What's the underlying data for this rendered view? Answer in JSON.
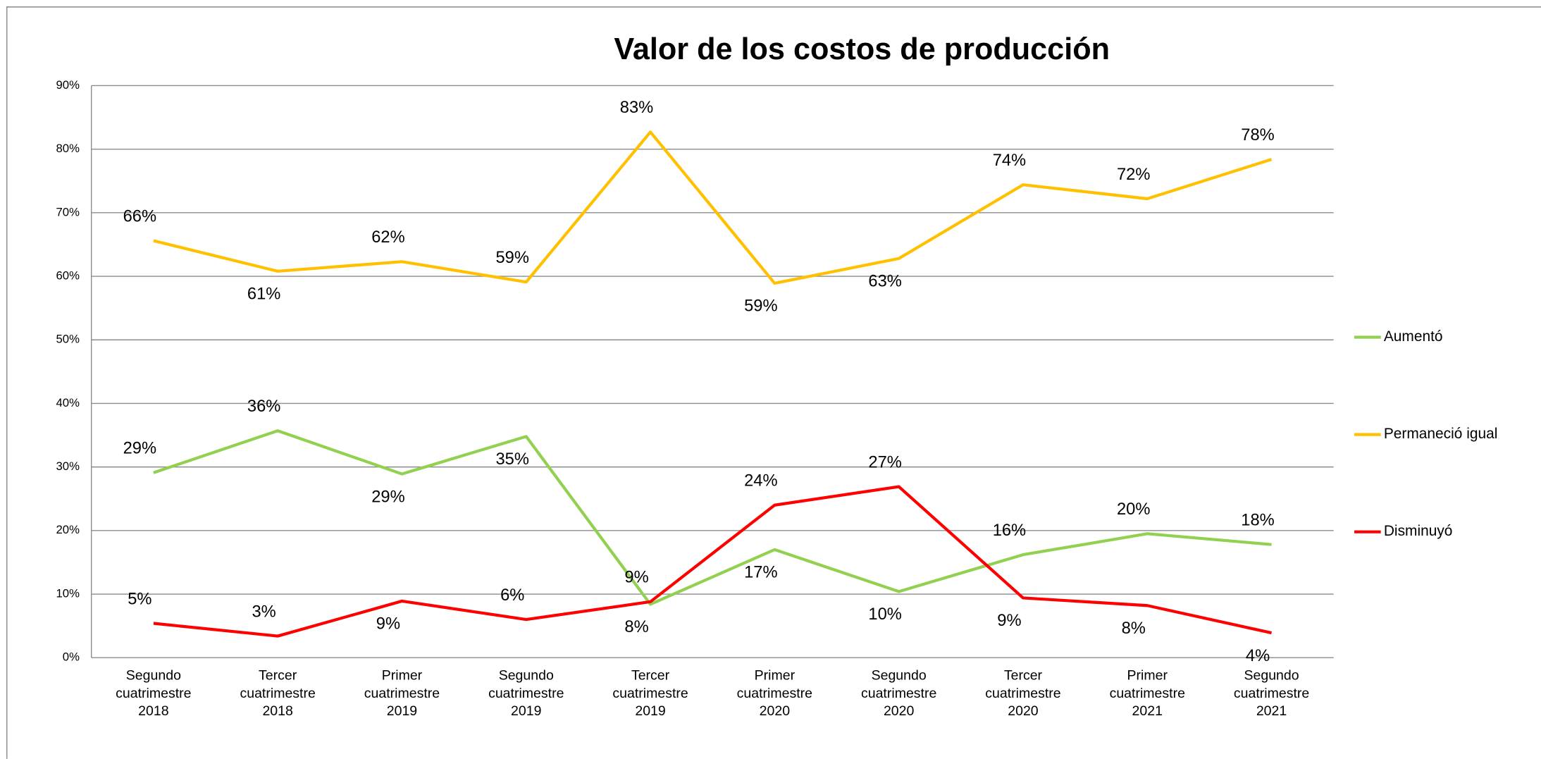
{
  "chart_data": {
    "type": "line",
    "title": "Valor de los costos de producción",
    "categories": [
      "Segundo cuatrimestre 2018",
      "Tercer cuatrimestre 2018",
      "Primer cuatrimestre 2019",
      "Segundo cuatrimestre 2019",
      "Tercer cuatrimestre 2019",
      "Primer cuatrimestre 2020",
      "Segundo cuatrimestre 2020",
      "Tercer cuatrimestre 2020",
      "Primer cuatrimestre 2021",
      "Segundo cuatrimestre 2021"
    ],
    "series": [
      {
        "name": "Aumentó",
        "color": "#92d050",
        "values": [
          29.1,
          35.7,
          28.9,
          34.8,
          8.4,
          17.0,
          10.4,
          16.2,
          19.5,
          17.8
        ],
        "value_labels": [
          "29%",
          "36%",
          "29%",
          "35%",
          "8%",
          "17%",
          "10%",
          "16%",
          "20%",
          "18%"
        ]
      },
      {
        "name": "Permaneció igual",
        "color": "#ffc000",
        "values": [
          65.6,
          60.8,
          62.3,
          59.1,
          82.7,
          58.9,
          62.8,
          74.4,
          72.2,
          78.4
        ],
        "value_labels": [
          "66%",
          "61%",
          "62%",
          "59%",
          "83%",
          "59%",
          "63%",
          "74%",
          "72%",
          "78%"
        ]
      },
      {
        "name": "Disminuyó",
        "color": "#ff0000",
        "values": [
          5.4,
          3.4,
          8.9,
          6.0,
          8.8,
          24.0,
          26.9,
          9.4,
          8.2,
          3.9
        ],
        "value_labels": [
          "5%",
          "3%",
          "9%",
          "6%",
          "9%",
          "24%",
          "27%",
          "9%",
          "8%",
          "4%"
        ]
      }
    ],
    "ylim": [
      0,
      90
    ],
    "yticks": [
      {
        "value": 0,
        "label": "0%"
      },
      {
        "value": 10,
        "label": "10%"
      },
      {
        "value": 20,
        "label": "20%"
      },
      {
        "value": 30,
        "label": "30%"
      },
      {
        "value": 40,
        "label": "40%"
      },
      {
        "value": 50,
        "label": "50%"
      },
      {
        "value": 60,
        "label": "60%"
      },
      {
        "value": 70,
        "label": "70%"
      },
      {
        "value": 80,
        "label": "80%"
      },
      {
        "value": 90,
        "label": "90%"
      }
    ],
    "grid": true,
    "legend": "right"
  }
}
